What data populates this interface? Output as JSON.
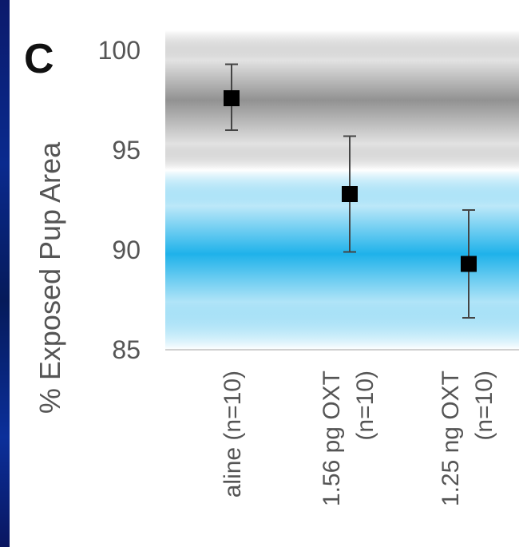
{
  "panel_label": "C",
  "colors": {
    "band_gray": "#8c8c8c",
    "band_blue": "#1fb2ea",
    "marker": "#000000",
    "axis_text": "#555555",
    "baseline": "#d0d0d0",
    "page_edge": "#0a2a8e"
  },
  "chart_data": {
    "type": "scatter",
    "title": "",
    "xlabel": "",
    "ylabel": "% Exposed Pup Area",
    "ylim": [
      85,
      101
    ],
    "yticks": [
      100,
      95,
      90,
      85
    ],
    "grid": false,
    "legend": "none",
    "categories": [
      [
        "aline (n=10)"
      ],
      [
        "1.56 pg OXT",
        "(n=10)"
      ],
      [
        "1.25 ng OXT",
        "(n=10)"
      ]
    ],
    "series": [
      {
        "values": [
          97.6,
          92.8,
          89.3
        ],
        "err_low": [
          96.0,
          89.9,
          86.6
        ],
        "err_high": [
          99.3,
          95.7,
          92.0
        ]
      }
    ],
    "background_bands": [
      {
        "color": "gray",
        "center": 97.5,
        "from": 94.0,
        "to": 101.0
      },
      {
        "color": "blue",
        "center": 89.8,
        "from": 85.0,
        "to": 94.0
      }
    ]
  }
}
